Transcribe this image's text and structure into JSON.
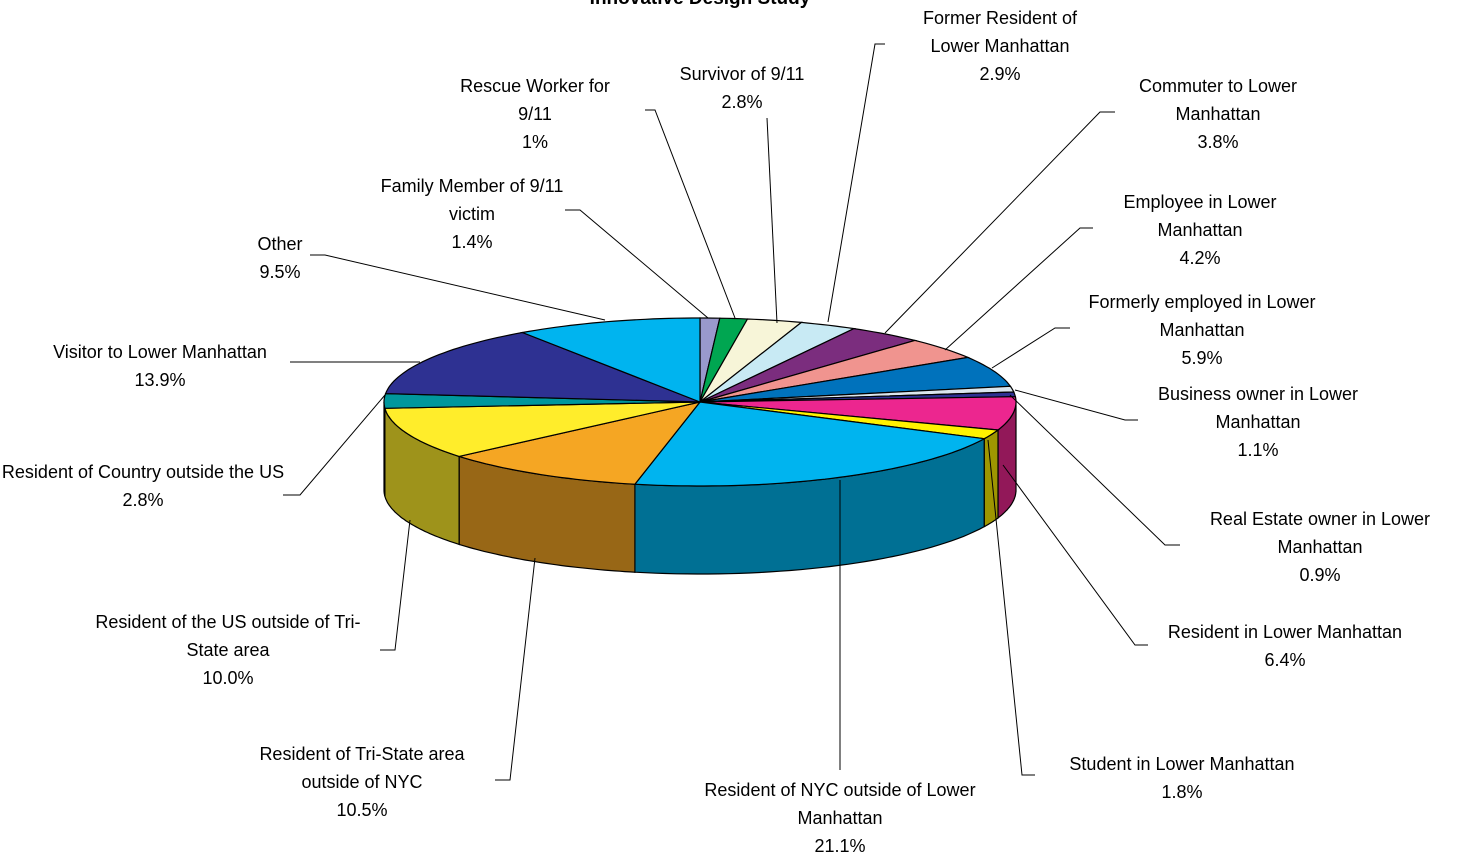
{
  "chart_data": {
    "type": "pie3d",
    "title": "Innovative Design Study",
    "categories": [
      "Rescue Worker for 9/11",
      "Family Member of 9/11 victim",
      "Survivor of 9/11",
      "Former Resident of Lower Manhattan",
      "Commuter to Lower Manhattan",
      "Employee in Lower Manhattan",
      "Formerly employed in Lower Manhattan",
      "Business owner in Lower Manhattan",
      "Real Estate owner in Lower Manhattan",
      "Resident in Lower Manhattan",
      "Student in Lower Manhattan",
      "Resident of NYC outside of Lower Manhattan",
      "Resident of Tri-State area outside of NYC",
      "Resident of the US outside of Tri-State area",
      "Resident of Country outside the US",
      "Visitor to Lower Manhattan",
      "Other"
    ],
    "values": [
      1,
      1.4,
      2.8,
      2.9,
      3.8,
      4.2,
      5.9,
      1.1,
      0.9,
      6.4,
      1.8,
      21.1,
      10.5,
      10.0,
      2.8,
      13.9,
      9.5
    ],
    "value_labels": [
      "1%",
      "1.4%",
      "2.8%",
      "2.9%",
      "3.8%",
      "4.2%",
      "5.9%",
      "1.1%",
      "0.9%",
      "6.4%",
      "1.8%",
      "21.1%",
      "10.5%",
      "10.0%",
      "2.8%",
      "13.9%",
      "9.5%"
    ],
    "colors": [
      "#9999cc",
      "#00a651",
      "#f7f5d8",
      "#c8eaf4",
      "#7b2d7e",
      "#f0948f",
      "#0072bc",
      "#dbe6ee",
      "#2e3192",
      "#ec268f",
      "#fff200",
      "#00b4ef",
      "#f5a623",
      "#ffed2b",
      "#00979c",
      "#2e3192",
      "#00b4ef"
    ]
  }
}
